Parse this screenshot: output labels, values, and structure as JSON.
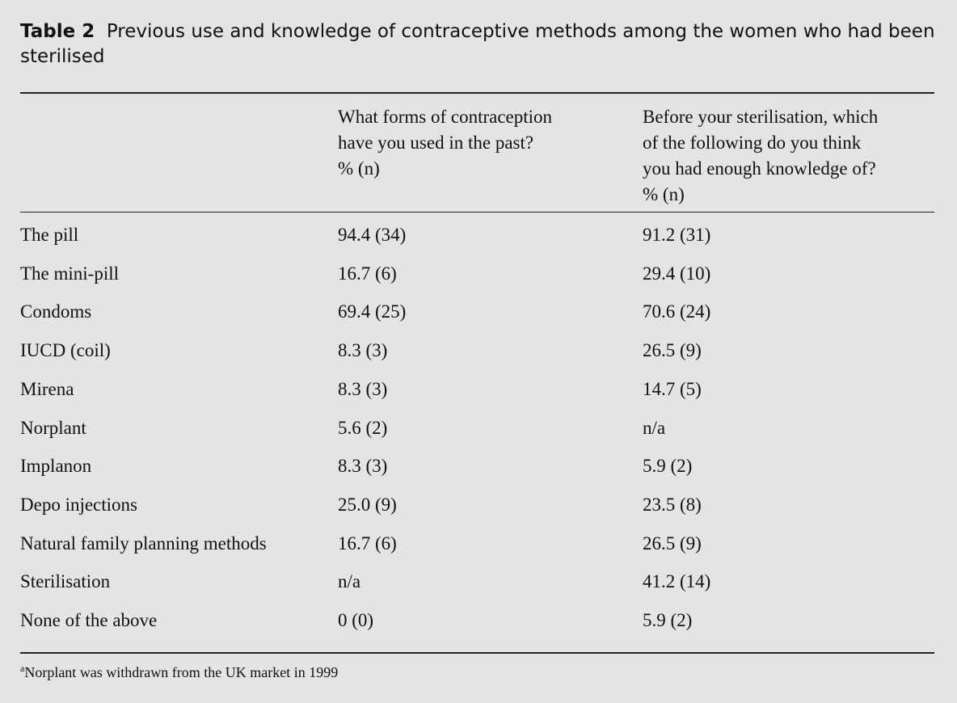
{
  "title": {
    "label": "Table 2",
    "text": "Previous use and knowledge of contraceptive methods among the women who had been sterilised"
  },
  "table": {
    "header": [
      [
        "What forms of contraception",
        "have you used in the past?",
        "% (n)"
      ],
      [
        "Before your sterilisation, which",
        "of the following do you think",
        "you had enough knowledge of?",
        "% (n)"
      ]
    ],
    "rows": [
      [
        "The pill",
        "94.4 (34)",
        "91.2 (31)"
      ],
      [
        "The mini-pill",
        "16.7 (6)",
        "29.4 (10)"
      ],
      [
        "Condoms",
        "69.4 (25)",
        "70.6 (24)"
      ],
      [
        "IUCD (coil)",
        "8.3 (3)",
        "26.5 (9)"
      ],
      [
        "Mirena",
        "8.3 (3)",
        "14.7 (5)"
      ],
      [
        "Norplant",
        "5.6 (2)",
        "n/a"
      ],
      [
        "Implanon",
        "8.3 (3)",
        "5.9 (2)"
      ],
      [
        "Depo injections",
        "25.0 (9)",
        "23.5 (8)"
      ],
      [
        "Natural family planning methods",
        "16.7 (6)",
        "26.5 (9)"
      ],
      [
        "Sterilisation",
        "n/a",
        "41.2 (14)"
      ],
      [
        "None of the above",
        "0 (0)",
        "5.9 (2)"
      ]
    ]
  },
  "footnote": {
    "marker": "a",
    "text": "Norplant was withdrawn from the UK market in 1999"
  }
}
